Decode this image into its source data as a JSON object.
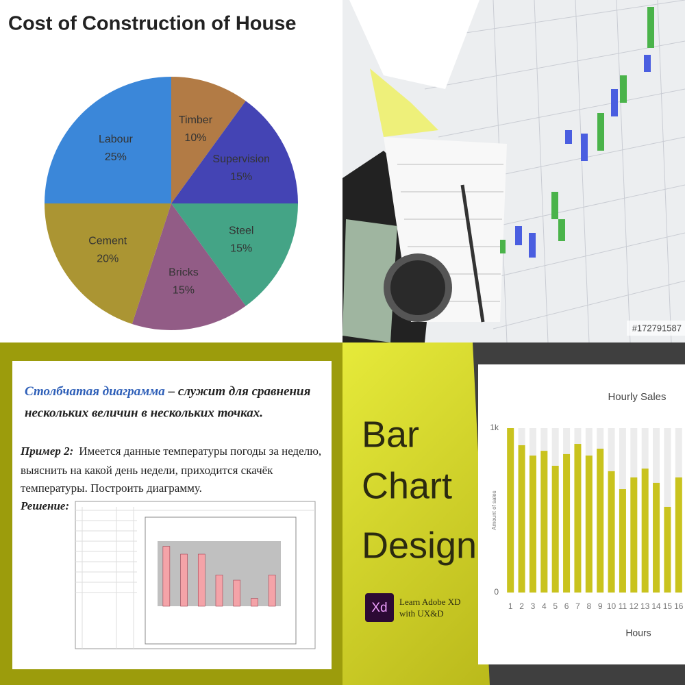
{
  "chart_data": [
    {
      "type": "pie",
      "title": "Cost of Construction of House",
      "categories": [
        "Timber",
        "Supervision",
        "Steel",
        "Bricks",
        "Cement",
        "Labour"
      ],
      "values": [
        10,
        15,
        15,
        15,
        20,
        25
      ],
      "value_labels": [
        "10%",
        "15%",
        "15%",
        "15%",
        "20%",
        "25%"
      ],
      "colors": [
        "#b27b45",
        "#4444b4",
        "#44a486",
        "#925c86",
        "#ab9533",
        "#3b87d9"
      ]
    },
    {
      "type": "bar",
      "title": "Hourly Sales",
      "y_label": "Amount of sales",
      "x_label": "Hours",
      "categories": [
        "1",
        "2",
        "3",
        "4",
        "5",
        "6",
        "7",
        "8",
        "9",
        "10",
        "11",
        "12",
        "13",
        "14",
        "15",
        "16"
      ],
      "values": [
        1000,
        896,
        833,
        862,
        771,
        842,
        904,
        833,
        875,
        738,
        629,
        700,
        754,
        667,
        521,
        700
      ],
      "color": "#c9c31e",
      "track_color": "#ececec",
      "ylim": [
        0,
        1000
      ],
      "yticks": [
        0,
        {
          "value": 1000,
          "label": "1k"
        }
      ]
    },
    {
      "type": "bar",
      "categories": [
        null,
        null,
        null,
        null,
        null,
        null,
        null
      ],
      "values": [
        23,
        20,
        20,
        12,
        10,
        3,
        12
      ],
      "color": "#f4a3a8",
      "ylim": [
        0,
        25
      ]
    }
  ],
  "slide": {
    "title_em": "Столбчатая диаграмма",
    "title_rest": " – служит для сравнения",
    "title_line_2": "нескольких величин в нескольких точках.",
    "example_label": "Пример 2:",
    "example_lines": [
      "Имеется данные температуры погоды за неделю,",
      "выяснить на какой день недели, приходится скачёк",
      "температуры. Построить диаграмму."
    ],
    "solution_label": "Решение:"
  },
  "banner": {
    "lines": [
      "Bar",
      "Chart",
      "Design"
    ],
    "logo": "Xd",
    "course": [
      "Learn Adobe XD",
      "with UX&D"
    ]
  },
  "photo": {
    "watermark": "#172791587"
  }
}
